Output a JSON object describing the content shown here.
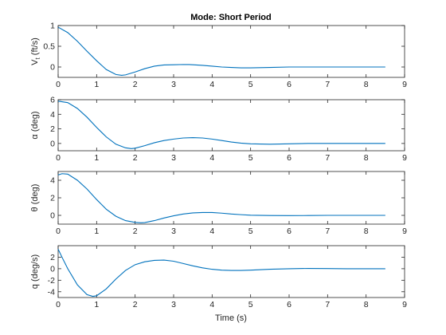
{
  "chart_data": {
    "type": "line",
    "title": "Mode: Short Period",
    "xlabel": "Time (s)",
    "xlim": [
      0,
      9
    ],
    "xticks": [
      0,
      1,
      2,
      3,
      4,
      5,
      6,
      7,
      8,
      9
    ],
    "grid": false,
    "line_color": "#0072BD",
    "panels": [
      {
        "ylabel": "V_t (ft/s)",
        "ylabel_main": "V",
        "ylabel_sub": "t",
        "ylabel_rest": " (ft/s)",
        "ylim": [
          -0.25,
          1
        ],
        "yticks": [
          0,
          0.5,
          1
        ],
        "ytick_labels": [
          "0",
          "0.5",
          "1"
        ],
        "x": [
          0,
          0.25,
          0.5,
          0.75,
          1.0,
          1.25,
          1.5,
          1.65,
          1.75,
          2.0,
          2.25,
          2.5,
          2.75,
          3.0,
          3.25,
          3.4,
          3.5,
          3.75,
          4.0,
          4.25,
          4.5,
          4.75,
          5.0,
          5.5,
          6.0,
          6.5,
          7.0,
          7.5,
          8.0,
          8.5
        ],
        "y": [
          0.96,
          0.83,
          0.62,
          0.38,
          0.15,
          -0.06,
          -0.18,
          -0.2,
          -0.19,
          -0.12,
          -0.04,
          0.02,
          0.05,
          0.055,
          0.06,
          0.058,
          0.055,
          0.04,
          0.02,
          0.0,
          -0.01,
          -0.02,
          -0.02,
          -0.01,
          0.0,
          0.0,
          0.0,
          0.0,
          0.0,
          0.0
        ]
      },
      {
        "ylabel": "α (deg)",
        "ylim": [
          -1,
          6
        ],
        "yticks": [
          0,
          2,
          4,
          6
        ],
        "ytick_labels": [
          "0",
          "2",
          "4",
          "6"
        ],
        "x": [
          0,
          0.25,
          0.5,
          0.75,
          1.0,
          1.25,
          1.5,
          1.75,
          1.9,
          2.0,
          2.25,
          2.5,
          2.75,
          3.0,
          3.25,
          3.5,
          3.75,
          4.0,
          4.25,
          4.5,
          4.75,
          5.0,
          5.5,
          6.0,
          6.5,
          7.0,
          7.5,
          8.0,
          8.5
        ],
        "y": [
          5.8,
          5.6,
          4.8,
          3.6,
          2.2,
          0.9,
          -0.1,
          -0.6,
          -0.7,
          -0.65,
          -0.3,
          0.1,
          0.4,
          0.6,
          0.75,
          0.8,
          0.75,
          0.6,
          0.4,
          0.2,
          0.05,
          -0.05,
          -0.1,
          -0.05,
          0.0,
          0.0,
          0.0,
          0.0,
          0.0
        ]
      },
      {
        "ylabel": "θ (deg)",
        "ylim": [
          -1,
          5
        ],
        "yticks": [
          0,
          2,
          4
        ],
        "ytick_labels": [
          "0",
          "2",
          "4"
        ],
        "x": [
          0,
          0.1,
          0.25,
          0.5,
          0.75,
          1.0,
          1.25,
          1.5,
          1.75,
          2.0,
          2.15,
          2.25,
          2.5,
          2.75,
          3.0,
          3.25,
          3.5,
          3.75,
          3.9,
          4.0,
          4.25,
          4.5,
          4.75,
          5.0,
          5.5,
          6.0,
          6.5,
          7.0,
          7.5,
          8.0,
          8.5
        ],
        "y": [
          4.6,
          4.75,
          4.7,
          4.0,
          3.0,
          1.8,
          0.7,
          -0.1,
          -0.6,
          -0.8,
          -0.85,
          -0.82,
          -0.6,
          -0.3,
          -0.05,
          0.15,
          0.28,
          0.32,
          0.33,
          0.32,
          0.25,
          0.15,
          0.08,
          0.02,
          -0.02,
          -0.03,
          -0.02,
          0.0,
          0.0,
          0.0,
          0.0
        ]
      },
      {
        "ylabel": "q (deg/s)",
        "ylim": [
          -5,
          4
        ],
        "yticks": [
          -4,
          -2,
          0,
          2
        ],
        "ytick_labels": [
          "-4",
          "-2",
          "0",
          "2"
        ],
        "x": [
          0,
          0.1,
          0.25,
          0.5,
          0.75,
          0.9,
          1.0,
          1.25,
          1.5,
          1.75,
          2.0,
          2.25,
          2.5,
          2.75,
          3.0,
          3.25,
          3.5,
          3.75,
          4.0,
          4.25,
          4.5,
          4.75,
          5.0,
          5.5,
          6.0,
          6.5,
          7.0,
          7.5,
          8.0,
          8.5
        ],
        "y": [
          3.4,
          2.0,
          0.0,
          -2.8,
          -4.5,
          -4.8,
          -4.7,
          -3.5,
          -1.8,
          -0.3,
          0.7,
          1.2,
          1.45,
          1.5,
          1.3,
          0.9,
          0.5,
          0.15,
          -0.1,
          -0.25,
          -0.3,
          -0.3,
          -0.25,
          -0.1,
          0.0,
          0.05,
          0.03,
          0.0,
          0.0,
          0.0
        ]
      }
    ]
  }
}
